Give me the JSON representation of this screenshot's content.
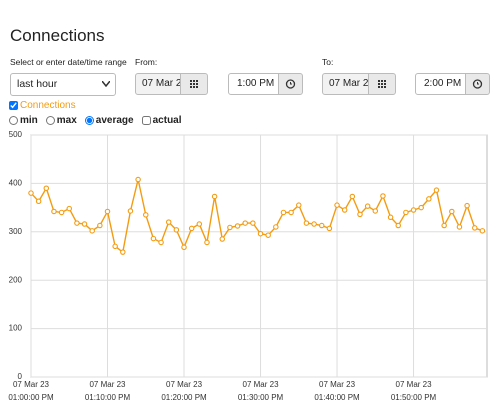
{
  "header": {
    "title": "Connections"
  },
  "range": {
    "label": "Select or enter date/time range",
    "preset": "last hour",
    "from_label": "From:",
    "from_date": "07 Mar 2",
    "from_time": "1:00 PM",
    "to_label": "To:",
    "to_date": "07 Mar 2",
    "to_time": "2:00 PM"
  },
  "options": {
    "modes": [
      "min",
      "max",
      "average",
      "actual"
    ]
  },
  "chart_data": {
    "type": "line",
    "x": [
      0,
      1,
      2,
      3,
      4,
      5,
      6,
      7,
      8,
      9,
      10,
      11,
      12,
      13,
      14,
      15,
      16,
      17,
      18,
      19,
      20,
      21,
      22,
      23,
      24,
      25,
      26,
      27,
      28,
      29,
      30,
      31,
      32,
      33,
      34,
      35,
      36,
      37,
      38,
      39,
      40,
      41,
      42,
      43,
      44,
      45,
      46,
      47,
      48,
      49,
      50,
      51,
      52,
      53,
      54,
      55,
      56,
      57,
      58,
      59
    ],
    "series": [
      {
        "name": "Connections",
        "color": "#f39c12",
        "values": [
          380,
          363,
          390,
          342,
          340,
          348,
          318,
          316,
          302,
          313,
          342,
          270,
          258,
          343,
          408,
          335,
          286,
          278,
          320,
          304,
          268,
          307,
          316,
          278,
          373,
          285,
          309,
          312,
          318,
          318,
          296,
          293,
          310,
          340,
          340,
          355,
          318,
          316,
          313,
          307,
          355,
          345,
          373,
          336,
          353,
          343,
          374,
          330,
          313,
          340,
          345,
          350,
          368,
          386,
          313,
          342,
          310,
          354,
          308,
          302
        ]
      }
    ],
    "xlim": [
      0,
      59.6
    ],
    "xticks": [
      {
        "value": 0,
        "label": [
          "07 Mar 23",
          "01:00:00 PM"
        ]
      },
      {
        "value": 10,
        "label": [
          "07 Mar 23",
          "01:10:00 PM"
        ]
      },
      {
        "value": 20,
        "label": [
          "07 Mar 23",
          "01:20:00 PM"
        ]
      },
      {
        "value": 30,
        "label": [
          "07 Mar 23",
          "01:30:00 PM"
        ]
      },
      {
        "value": 40,
        "label": [
          "07 Mar 23",
          "01:40:00 PM"
        ]
      },
      {
        "value": 50,
        "label": [
          "07 Mar 23",
          "01:50:00 PM"
        ]
      }
    ],
    "ylim": [
      0,
      500
    ],
    "yticks": [
      0,
      100,
      200,
      300,
      400,
      500
    ],
    "grid": true
  }
}
